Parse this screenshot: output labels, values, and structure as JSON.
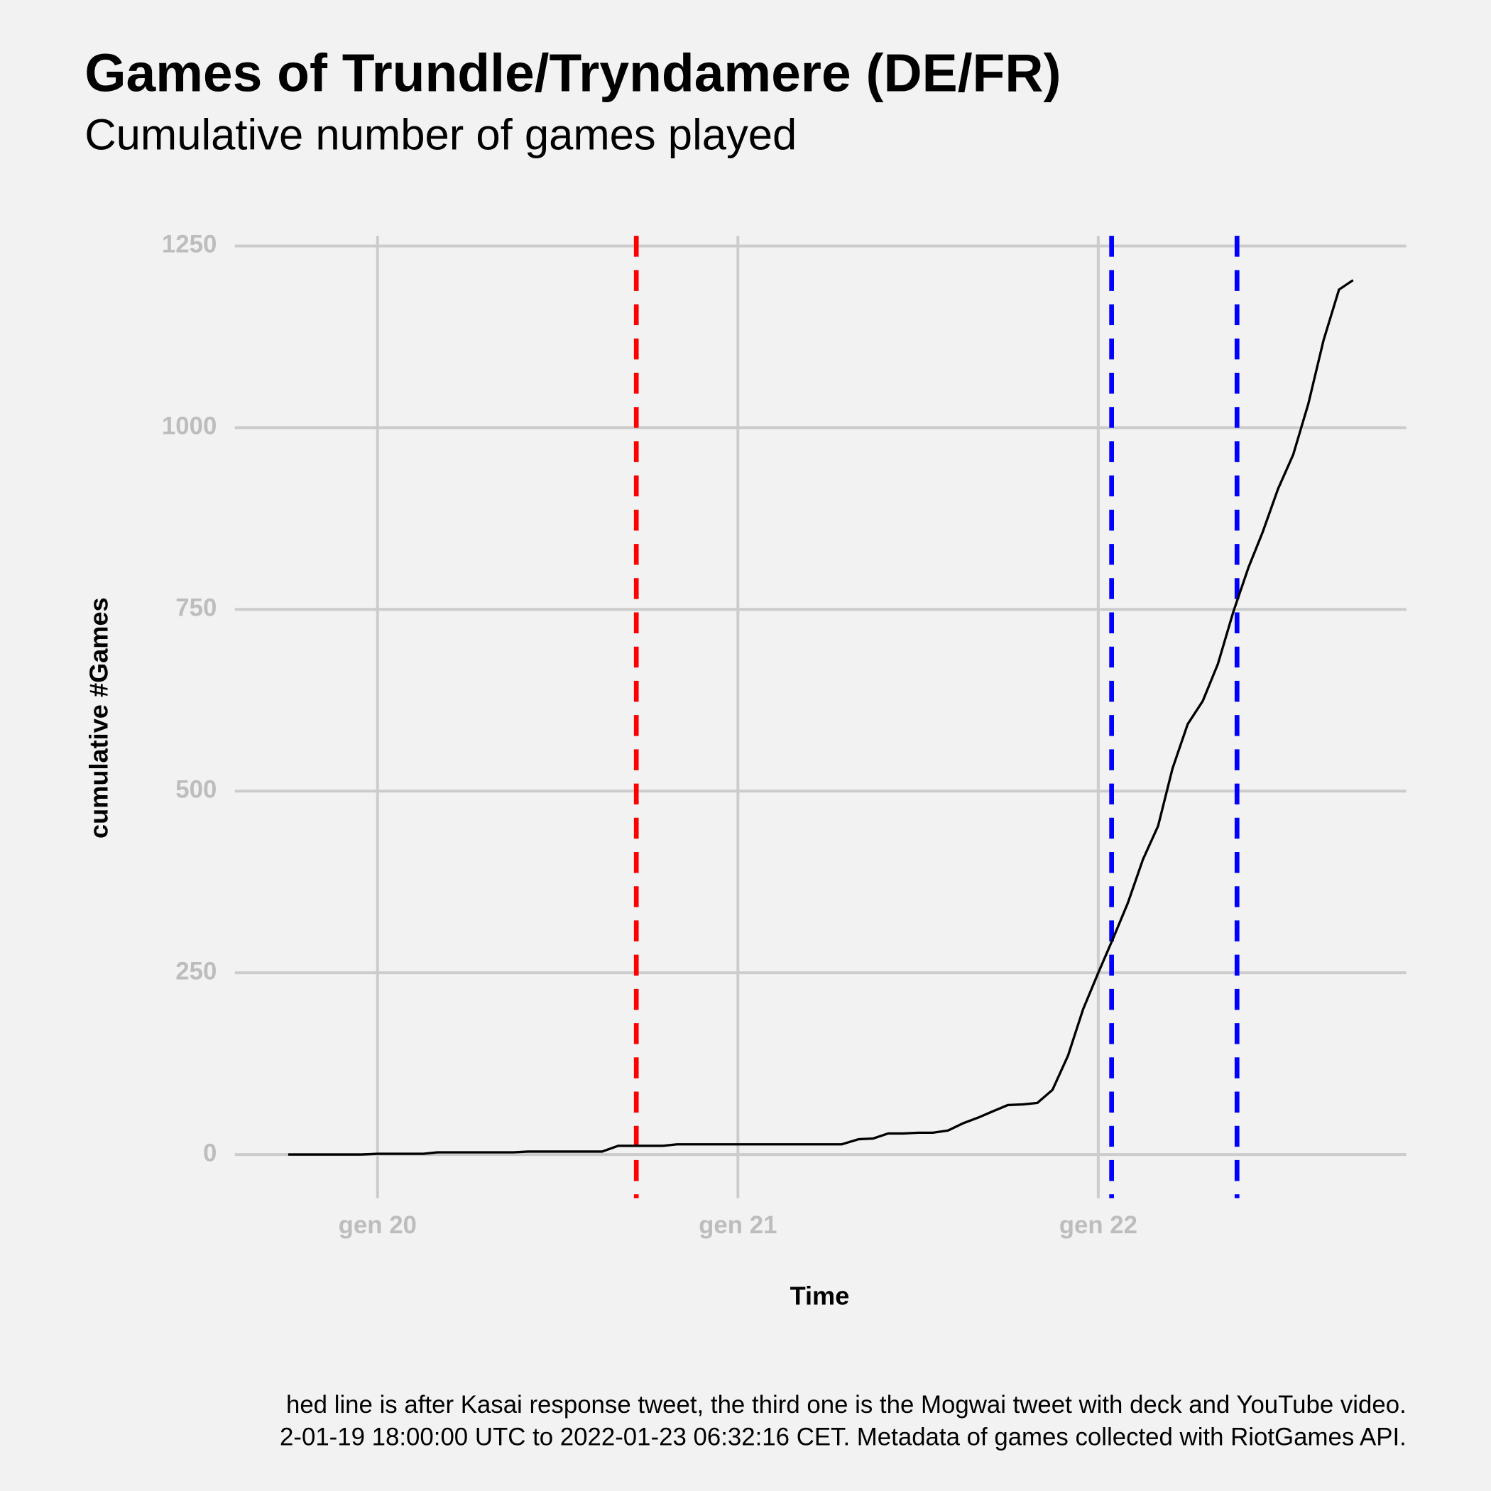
{
  "chart_data": {
    "type": "line",
    "title": "Games of Trundle/Tryndamere (DE/FR)",
    "subtitle": "Cumulative number of games played",
    "xlabel": "Time",
    "ylabel": "cumulative #Games",
    "caption": [
      "hed line is after Kasai response tweet, the third one is the Mogwai tweet with deck and YouTube video.",
      "2-01-19 18:00:00 UTC to 2022-01-23 06:32:16 CET. Metadata of games collected with RiotGames API."
    ],
    "x": [
      19.752,
      19.955,
      20.0,
      20.127,
      20.166,
      20.377,
      20.417,
      20.623,
      20.668,
      20.792,
      20.831,
      21.288,
      21.335,
      21.375,
      21.417,
      21.459,
      21.501,
      21.541,
      21.583,
      21.625,
      21.668,
      21.71,
      21.749,
      21.792,
      21.831,
      21.873,
      21.916,
      21.958,
      22.0,
      22.04,
      22.082,
      22.124,
      22.166,
      22.206,
      22.248,
      22.29,
      22.332,
      22.375,
      22.417,
      22.456,
      22.499,
      22.541,
      22.583,
      22.625,
      22.668,
      22.707
    ],
    "series": [
      {
        "color": "#000000",
        "values": [
          0,
          0,
          1,
          1,
          3,
          3,
          4,
          4,
          12,
          12,
          14,
          14,
          21,
          22,
          29,
          29,
          30,
          30,
          33,
          43,
          51,
          60,
          68,
          69,
          71,
          89,
          136,
          200,
          250,
          296,
          346,
          406,
          452,
          531,
          592,
          624,
          675,
          747,
          808,
          856,
          916,
          963,
          1033,
          1120,
          1190,
          1203
        ]
      }
    ],
    "vlines": [
      {
        "x": 20.718,
        "color": "#ff0000"
      },
      {
        "x": 22.037,
        "color": "#0000ff"
      },
      {
        "x": 22.385,
        "color": "#0000ff"
      }
    ],
    "xlim": [
      19.604,
      22.855
    ],
    "ylim": [
      -60,
      1264
    ],
    "xticks": [
      {
        "value": 20,
        "label": "gen 20"
      },
      {
        "value": 21,
        "label": "gen 21"
      },
      {
        "value": 22,
        "label": "gen 22"
      }
    ],
    "yticks": [
      0,
      250,
      500,
      750,
      1000,
      1250
    ],
    "grid": true
  }
}
